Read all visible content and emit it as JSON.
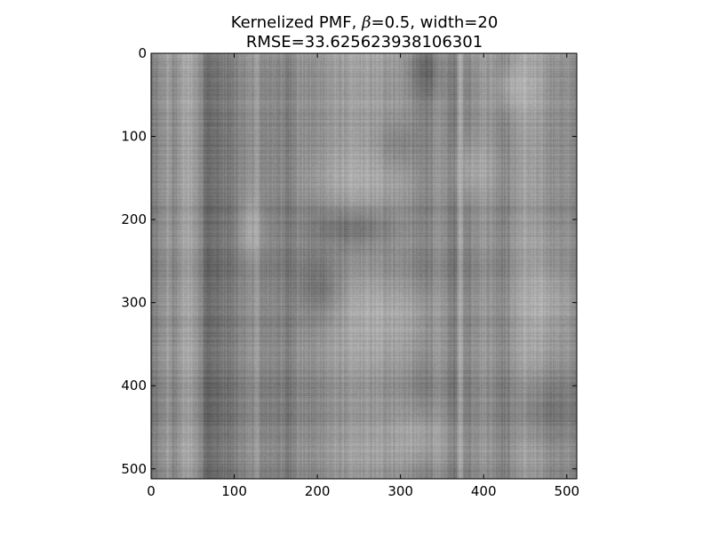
{
  "chart_data": {
    "type": "heatmap",
    "title_line1_prefix": "Kernelized PMF, ",
    "title_line1_beta": "β",
    "title_line1_suffix": "=0.5, width=20",
    "title_line2": "RMSE=33.625623938106301",
    "xlabel": "",
    "ylabel": "",
    "colormap": "gray",
    "image_size": [
      512,
      512
    ],
    "xlim": [
      0,
      512
    ],
    "ylim": [
      512,
      0
    ],
    "x_origin": "top-left",
    "x_ticks": [
      "0",
      "100",
      "200",
      "300",
      "400",
      "500"
    ],
    "y_ticks": [
      "0",
      "100",
      "200",
      "300",
      "400",
      "500"
    ],
    "x_tick_values": [
      0,
      100,
      200,
      300,
      400,
      500
    ],
    "y_tick_values": [
      0,
      100,
      200,
      300,
      400,
      500
    ],
    "grid": false,
    "background": "#ffffff",
    "frame_color": "#000000",
    "column_profile": [
      {
        "x": 0,
        "v": 0.3
      },
      {
        "x": 8,
        "v": 0.4
      },
      {
        "x": 14,
        "v": 0.55
      },
      {
        "x": 22,
        "v": 0.62
      },
      {
        "x": 28,
        "v": 0.4
      },
      {
        "x": 34,
        "v": 0.66
      },
      {
        "x": 44,
        "v": 0.7
      },
      {
        "x": 52,
        "v": 0.64
      },
      {
        "x": 60,
        "v": 0.45
      },
      {
        "x": 66,
        "v": 0.22
      },
      {
        "x": 76,
        "v": 0.2
      },
      {
        "x": 86,
        "v": 0.3
      },
      {
        "x": 96,
        "v": 0.28
      },
      {
        "x": 106,
        "v": 0.42
      },
      {
        "x": 118,
        "v": 0.52
      },
      {
        "x": 128,
        "v": 0.58
      },
      {
        "x": 136,
        "v": 0.38
      },
      {
        "x": 146,
        "v": 0.46
      },
      {
        "x": 156,
        "v": 0.42
      },
      {
        "x": 164,
        "v": 0.3
      },
      {
        "x": 172,
        "v": 0.5
      },
      {
        "x": 182,
        "v": 0.52
      },
      {
        "x": 194,
        "v": 0.46
      },
      {
        "x": 206,
        "v": 0.56
      },
      {
        "x": 222,
        "v": 0.6
      },
      {
        "x": 240,
        "v": 0.62
      },
      {
        "x": 258,
        "v": 0.64
      },
      {
        "x": 276,
        "v": 0.62
      },
      {
        "x": 294,
        "v": 0.6
      },
      {
        "x": 310,
        "v": 0.54
      },
      {
        "x": 322,
        "v": 0.4
      },
      {
        "x": 336,
        "v": 0.46
      },
      {
        "x": 350,
        "v": 0.52
      },
      {
        "x": 358,
        "v": 0.4
      },
      {
        "x": 366,
        "v": 0.28
      },
      {
        "x": 372,
        "v": 0.8
      },
      {
        "x": 378,
        "v": 0.36
      },
      {
        "x": 388,
        "v": 0.55
      },
      {
        "x": 400,
        "v": 0.6
      },
      {
        "x": 414,
        "v": 0.52
      },
      {
        "x": 426,
        "v": 0.4
      },
      {
        "x": 438,
        "v": 0.6
      },
      {
        "x": 450,
        "v": 0.68
      },
      {
        "x": 468,
        "v": 0.58
      },
      {
        "x": 486,
        "v": 0.52
      },
      {
        "x": 500,
        "v": 0.48
      },
      {
        "x": 512,
        "v": 0.45
      }
    ],
    "row_profile": [
      {
        "y": 0,
        "v": 0.62
      },
      {
        "y": 20,
        "v": 0.56
      },
      {
        "y": 40,
        "v": 0.5
      },
      {
        "y": 64,
        "v": 0.58
      },
      {
        "y": 72,
        "v": 0.44
      },
      {
        "y": 90,
        "v": 0.54
      },
      {
        "y": 110,
        "v": 0.48
      },
      {
        "y": 130,
        "v": 0.5
      },
      {
        "y": 150,
        "v": 0.52
      },
      {
        "y": 170,
        "v": 0.56
      },
      {
        "y": 186,
        "v": 0.4
      },
      {
        "y": 200,
        "v": 0.5
      },
      {
        "y": 220,
        "v": 0.52
      },
      {
        "y": 240,
        "v": 0.48
      },
      {
        "y": 262,
        "v": 0.4
      },
      {
        "y": 280,
        "v": 0.52
      },
      {
        "y": 300,
        "v": 0.56
      },
      {
        "y": 320,
        "v": 0.5
      },
      {
        "y": 340,
        "v": 0.54
      },
      {
        "y": 360,
        "v": 0.58
      },
      {
        "y": 380,
        "v": 0.52
      },
      {
        "y": 398,
        "v": 0.36
      },
      {
        "y": 420,
        "v": 0.48
      },
      {
        "y": 440,
        "v": 0.4
      },
      {
        "y": 460,
        "v": 0.5
      },
      {
        "y": 480,
        "v": 0.56
      },
      {
        "y": 500,
        "v": 0.46
      },
      {
        "y": 512,
        "v": 0.42
      }
    ],
    "blobs": [
      {
        "cx": 240,
        "cy": 210,
        "rx": 60,
        "ry": 30,
        "v": 0.22
      },
      {
        "cx": 280,
        "cy": 320,
        "rx": 70,
        "ry": 40,
        "v": 0.72
      },
      {
        "cx": 250,
        "cy": 150,
        "rx": 60,
        "ry": 40,
        "v": 0.68
      },
      {
        "cx": 330,
        "cy": 20,
        "rx": 20,
        "ry": 40,
        "v": 0.22
      },
      {
        "cx": 440,
        "cy": 40,
        "rx": 30,
        "ry": 30,
        "v": 0.75
      },
      {
        "cx": 470,
        "cy": 300,
        "rx": 40,
        "ry": 60,
        "v": 0.72
      },
      {
        "cx": 390,
        "cy": 140,
        "rx": 30,
        "ry": 40,
        "v": 0.7
      },
      {
        "cx": 200,
        "cy": 280,
        "rx": 30,
        "ry": 40,
        "v": 0.3
      },
      {
        "cx": 120,
        "cy": 210,
        "rx": 14,
        "ry": 40,
        "v": 0.72
      },
      {
        "cx": 320,
        "cy": 460,
        "rx": 50,
        "ry": 40,
        "v": 0.68
      },
      {
        "cx": 480,
        "cy": 430,
        "rx": 40,
        "ry": 40,
        "v": 0.34
      },
      {
        "cx": 300,
        "cy": 110,
        "rx": 30,
        "ry": 30,
        "v": 0.4
      }
    ]
  }
}
